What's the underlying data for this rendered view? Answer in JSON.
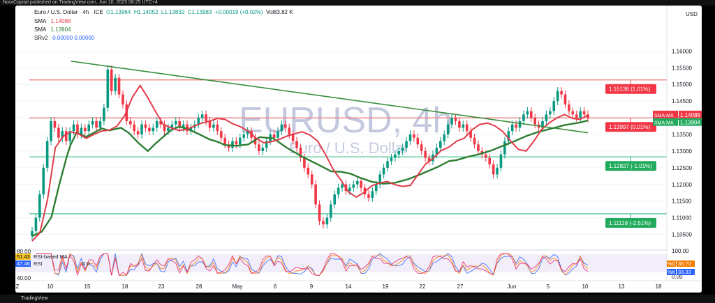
{
  "top_caption": "NoorCapital published on TradingView.com, Jun 10, 2025 08:25 UTC+4",
  "footer_brand": "TradingView",
  "header": {
    "symbol": "Euro / U.S. Dollar · 4h · ICE",
    "ohlc": {
      "o": "O1.13964",
      "h": "H1.14052",
      "l": "L1.13832",
      "c": "C1.13983",
      "chg": "+0.00019 (+0.02%)",
      "vol": "Vol83.82 K"
    },
    "indicators": [
      {
        "name": "SMA",
        "value": "1.14088",
        "color": "#e03c4a"
      },
      {
        "name": "SMA",
        "value": "1.13904",
        "color": "#2e7d32"
      },
      {
        "name": "SRv2",
        "value": "0.00000  0.00000",
        "color": "#2962ff"
      }
    ]
  },
  "watermark": {
    "big": "EURUSD, 4h",
    "small": "Euro / U.S. Dollar"
  },
  "colors": {
    "up": "#089981",
    "down": "#f23645",
    "sma_fast": "#e03c4a",
    "sma_slow": "#2e7d32",
    "trend": "#388e3c",
    "resistance": "#e57373",
    "support": "#2ebd85",
    "label_red": "#f23645",
    "label_green": "#22ab5c"
  },
  "chart_data": [
    {
      "type": "line",
      "title": "Euro / U.S. Dollar · 4h · ICE",
      "currency": "USD",
      "x_ticks": [
        "Z",
        "10",
        "15",
        "18",
        "23",
        "28",
        "May",
        "6",
        "9",
        "14",
        "19",
        "22",
        "27",
        "Jun",
        "5",
        "10",
        "13",
        "18"
      ],
      "y_ticks": [
        "1.16000",
        "1.15500",
        "1.15000",
        "1.14500",
        "1.14000",
        "1.13500",
        "1.13000",
        "1.12500",
        "1.12000",
        "1.11500",
        "1.11000",
        "1.10500"
      ],
      "ylim": [
        1.1026,
        1.1628
      ],
      "series": [
        {
          "name": "SMA",
          "points": [
            [
              0,
              1.1045
            ],
            [
              5,
              1.1058
            ],
            [
              10,
              1.1102
            ],
            [
              14,
              1.1198
            ],
            [
              18,
              1.1285
            ],
            [
              20,
              1.132
            ],
            [
              23,
              1.1355
            ],
            [
              28,
              1.1343
            ],
            [
              32,
              1.1355
            ],
            [
              36,
              1.1368
            ],
            [
              40,
              1.1362
            ],
            [
              46,
              1.137
            ],
            [
              50,
              1.1355
            ],
            [
              55,
              1.1325
            ],
            [
              60,
              1.13
            ],
            [
              64,
              1.1323
            ],
            [
              68,
              1.1343
            ],
            [
              72,
              1.1363
            ],
            [
              76,
              1.1373
            ],
            [
              80,
              1.1368
            ],
            [
              86,
              1.1352
            ],
            [
              92,
              1.1335
            ],
            [
              96,
              1.1328
            ],
            [
              100,
              1.1318
            ],
            [
              106,
              1.1316
            ],
            [
              112,
              1.132
            ],
            [
              118,
              1.1342
            ],
            [
              125,
              1.1338
            ],
            [
              132,
              1.131
            ],
            [
              140,
              1.1283
            ],
            [
              148,
              1.126
            ],
            [
              155,
              1.1239
            ],
            [
              160,
              1.1238
            ],
            [
              165,
              1.1232
            ],
            [
              170,
              1.122
            ],
            [
              176,
              1.1208
            ],
            [
              182,
              1.1202
            ],
            [
              188,
              1.1205
            ],
            [
              195,
              1.1216
            ],
            [
              202,
              1.1232
            ],
            [
              210,
              1.1252
            ],
            [
              216,
              1.127
            ],
            [
              220,
              1.1273
            ],
            [
              226,
              1.1283
            ],
            [
              232,
              1.1291
            ],
            [
              238,
              1.1302
            ],
            [
              244,
              1.1316
            ],
            [
              250,
              1.133
            ],
            [
              256,
              1.1345
            ],
            [
              262,
              1.1357
            ],
            [
              268,
              1.1366
            ],
            [
              272,
              1.1372
            ],
            [
              276,
              1.1378
            ],
            [
              280,
              1.1382
            ],
            [
              284,
              1.1386
            ],
            [
              288,
              1.1392
            ]
          ]
        },
        {
          "name": "SMA",
          "points": [
            [
              0,
              1.103
            ],
            [
              4,
              1.1055
            ],
            [
              8,
              1.1155
            ],
            [
              12,
              1.131
            ],
            [
              16,
              1.1344
            ],
            [
              20,
              1.1358
            ],
            [
              24,
              1.1352
            ],
            [
              28,
              1.1338
            ],
            [
              32,
              1.135
            ],
            [
              36,
              1.136
            ],
            [
              40,
              1.1363
            ],
            [
              44,
              1.1375
            ],
            [
              48,
              1.1407
            ],
            [
              52,
              1.1462
            ],
            [
              56,
              1.1497
            ],
            [
              60,
              1.146
            ],
            [
              64,
              1.1418
            ],
            [
              68,
              1.138
            ],
            [
              72,
              1.137
            ],
            [
              76,
              1.1362
            ],
            [
              80,
              1.1365
            ],
            [
              84,
              1.1375
            ],
            [
              88,
              1.1384
            ],
            [
              92,
              1.139
            ],
            [
              96,
              1.1398
            ],
            [
              100,
              1.1395
            ],
            [
              104,
              1.1382
            ],
            [
              108,
              1.1373
            ],
            [
              112,
              1.136
            ],
            [
              116,
              1.1339
            ],
            [
              120,
              1.1325
            ],
            [
              124,
              1.1328
            ],
            [
              128,
              1.1335
            ],
            [
              132,
              1.1345
            ],
            [
              136,
              1.1352
            ],
            [
              140,
              1.1358
            ],
            [
              144,
              1.1348
            ],
            [
              148,
              1.133
            ],
            [
              152,
              1.129
            ],
            [
              156,
              1.1245
            ],
            [
              160,
              1.1213
            ],
            [
              164,
              1.1177
            ],
            [
              168,
              1.1162
            ],
            [
              172,
              1.1176
            ],
            [
              176,
              1.1196
            ],
            [
              180,
              1.1204
            ],
            [
              184,
              1.1209
            ],
            [
              188,
              1.1199
            ],
            [
              192,
              1.1194
            ],
            [
              196,
              1.1197
            ],
            [
              200,
              1.123
            ],
            [
              204,
              1.1262
            ],
            [
              208,
              1.1279
            ],
            [
              212,
              1.1302
            ],
            [
              216,
              1.1312
            ],
            [
              220,
              1.133
            ],
            [
              224,
              1.1339
            ],
            [
              228,
              1.1364
            ],
            [
              232,
              1.138
            ],
            [
              236,
              1.1384
            ],
            [
              240,
              1.1375
            ],
            [
              244,
              1.1358
            ],
            [
              248,
              1.133
            ],
            [
              252,
              1.1305
            ],
            [
              256,
              1.13
            ],
            [
              260,
              1.133
            ],
            [
              264,
              1.1365
            ],
            [
              268,
              1.1385
            ],
            [
              272,
              1.14
            ],
            [
              276,
              1.141
            ],
            [
              280,
              1.1398
            ],
            [
              284,
              1.1395
            ],
            [
              288,
              1.1409
            ]
          ]
        }
      ],
      "candles_close": [
        1.106,
        1.11,
        1.117,
        1.125,
        1.133,
        1.139,
        1.137,
        1.134,
        1.136,
        1.133,
        1.136,
        1.138,
        1.135,
        1.137,
        1.136,
        1.138,
        1.139,
        1.137,
        1.139,
        1.143,
        1.1545,
        1.148,
        1.152,
        1.147,
        1.144,
        1.139,
        1.138,
        1.136,
        1.135,
        1.138,
        1.137,
        1.136,
        1.137,
        1.139,
        1.138,
        1.136,
        1.137,
        1.138,
        1.139,
        1.137,
        1.138,
        1.136,
        1.137,
        1.138,
        1.14,
        1.141,
        1.139,
        1.137,
        1.138,
        1.136,
        1.134,
        1.132,
        1.131,
        1.133,
        1.132,
        1.134,
        1.135,
        1.136,
        1.134,
        1.132,
        1.13,
        1.131,
        1.133,
        1.135,
        1.134,
        1.136,
        1.138,
        1.137,
        1.135,
        1.133,
        1.131,
        1.128,
        1.125,
        1.123,
        1.12,
        1.114,
        1.109,
        1.108,
        1.11,
        1.114,
        1.117,
        1.119,
        1.12,
        1.118,
        1.119,
        1.12,
        1.121,
        1.119,
        1.117,
        1.116,
        1.118,
        1.12,
        1.123,
        1.125,
        1.127,
        1.128,
        1.129,
        1.13,
        1.131,
        1.133,
        1.135,
        1.134,
        1.132,
        1.13,
        1.128,
        1.127,
        1.129,
        1.131,
        1.133,
        1.135,
        1.138,
        1.14,
        1.139,
        1.137,
        1.138,
        1.136,
        1.134,
        1.132,
        1.13,
        1.129,
        1.128,
        1.126,
        1.123,
        1.125,
        1.129,
        1.133,
        1.136,
        1.138,
        1.137,
        1.139,
        1.141,
        1.142,
        1.14,
        1.138,
        1.137,
        1.139,
        1.141,
        1.142,
        1.145,
        1.148,
        1.147,
        1.144,
        1.142,
        1.141,
        1.14,
        1.142,
        1.141,
        1.1398
      ],
      "horizontal_levels": [
        {
          "label": "1.15136 (1.01%)",
          "value": 1.15136,
          "color": "#f23645"
        },
        {
          "label": "1.13997 (0.01%)",
          "value": 1.13997,
          "color": "#f23645"
        },
        {
          "label": "1.12827 (-1.01%)",
          "value": 1.12827,
          "color": "#22ab5c"
        },
        {
          "label": "1.11118 (-2.51%)",
          "value": 1.11118,
          "color": "#22ab5c"
        }
      ],
      "trendline": [
        [
          20,
          1.157
        ],
        [
          288,
          1.1355
        ]
      ],
      "last_price_labels": [
        {
          "tag": "SMA:MA",
          "value": "1.14088",
          "color": "#f23645"
        },
        {
          "tag": "SMA:MA",
          "value": "1.13904",
          "color": "#22ab5c"
        }
      ]
    },
    {
      "type": "line",
      "title": "RSI",
      "y_ticks_left": [
        "80.00",
        "40.00"
      ],
      "y_ticks_right": [
        "100.00",
        "50.00",
        "0.00"
      ],
      "legend": [
        {
          "value": "51.43",
          "label": "RSI-based MA",
          "color": "#f7c525"
        },
        {
          "value": "47.46",
          "label": "RSI",
          "color": "#2962ff"
        }
      ],
      "legend_extra": "0 0",
      "right_labels": [
        {
          "tag": "%D",
          "value": "36.70",
          "color": "#f57c00"
        },
        {
          "tag": "%K",
          "value": "33.33",
          "color": "#2962ff"
        }
      ],
      "ylim": [
        0,
        100
      ]
    }
  ]
}
